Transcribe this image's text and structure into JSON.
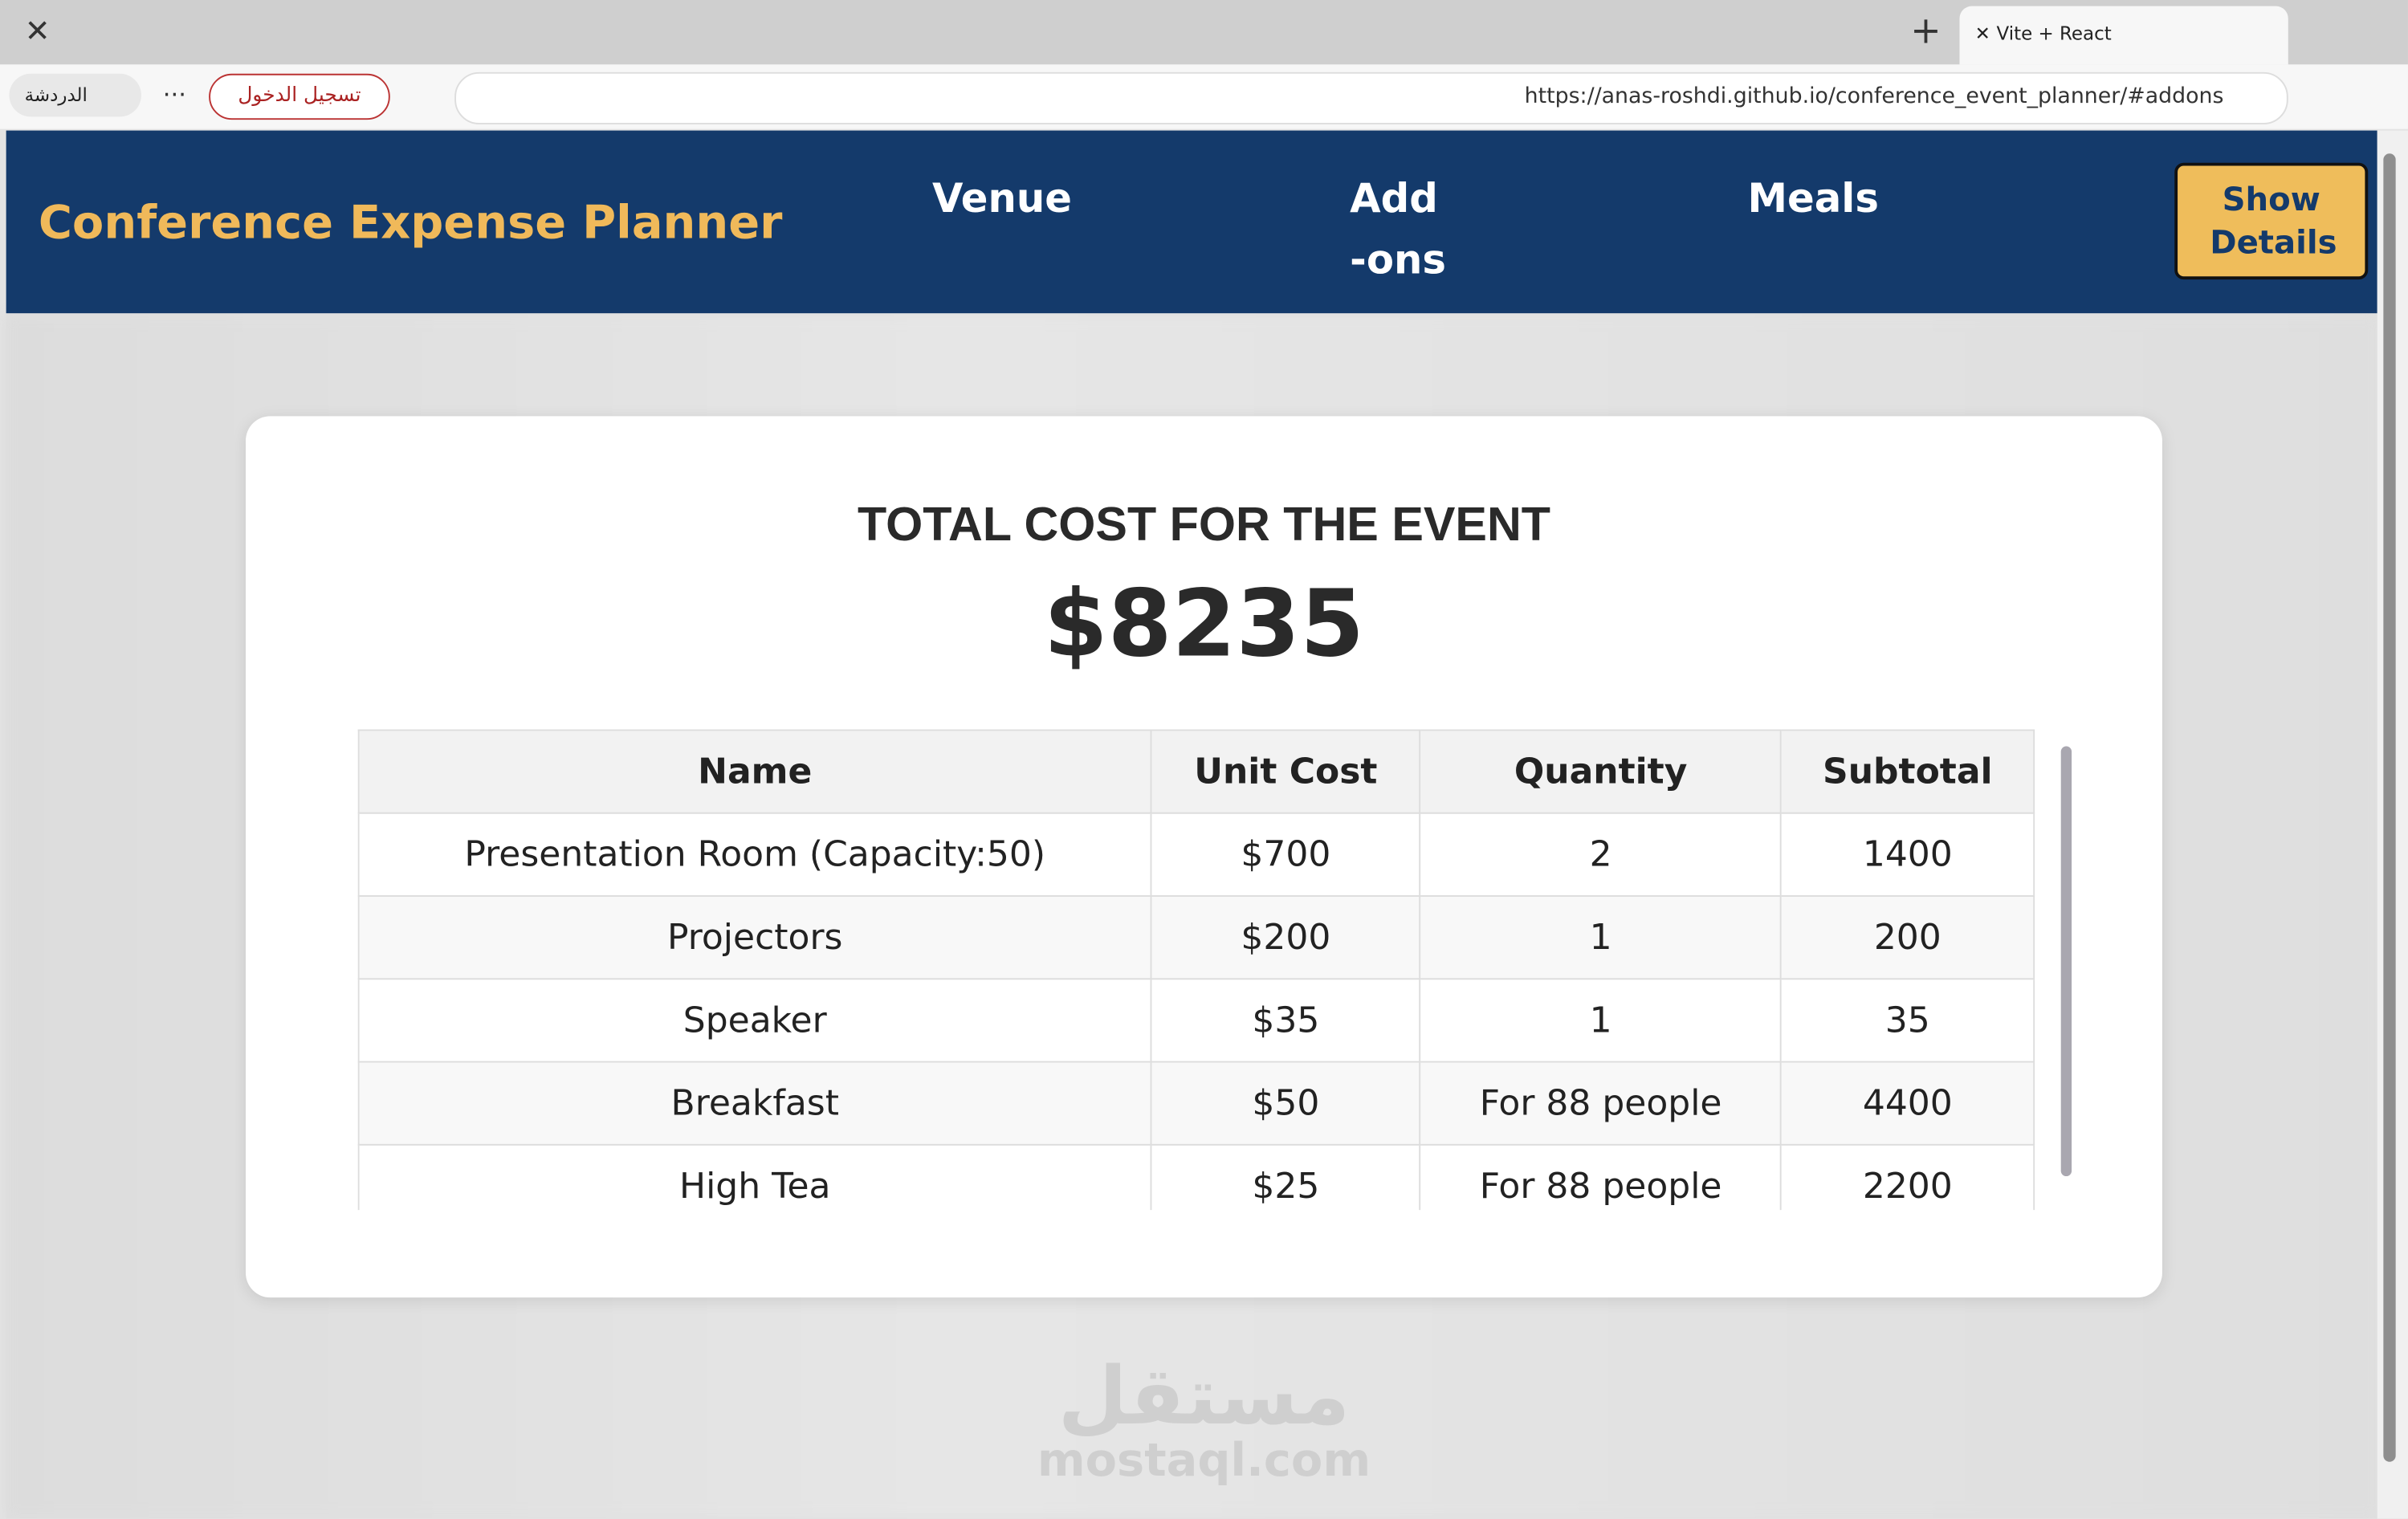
{
  "browser": {
    "tab_title": "Vite + React",
    "url": "https://anas-roshdi.github.io/conference_event_planner/#addons",
    "sign_in": "تسجيل الدخول",
    "chat": "الدردشة"
  },
  "header": {
    "title": "Conference Expense Planner",
    "nav": [
      "Venue",
      "Add-ons",
      "Meals"
    ],
    "button": "Show Details"
  },
  "modal": {
    "heading": "TOTAL COST FOR THE EVENT",
    "total": "$8235",
    "table": {
      "columns": [
        "Name",
        "Unit Cost",
        "Quantity",
        "Subtotal"
      ],
      "rows": [
        [
          "Presentation Room (Capacity:50)",
          "$700",
          "2",
          "1400"
        ],
        [
          "Projectors",
          "$200",
          "1",
          "200"
        ],
        [
          "Speaker",
          "$35",
          "1",
          "35"
        ],
        [
          "Breakfast",
          "$50",
          "For 88 people",
          "4400"
        ],
        [
          "High Tea",
          "$25",
          "For 88 people",
          "2200"
        ]
      ]
    }
  },
  "watermark": {
    "arabic": "مستقل",
    "latin": "mostaql.com"
  }
}
